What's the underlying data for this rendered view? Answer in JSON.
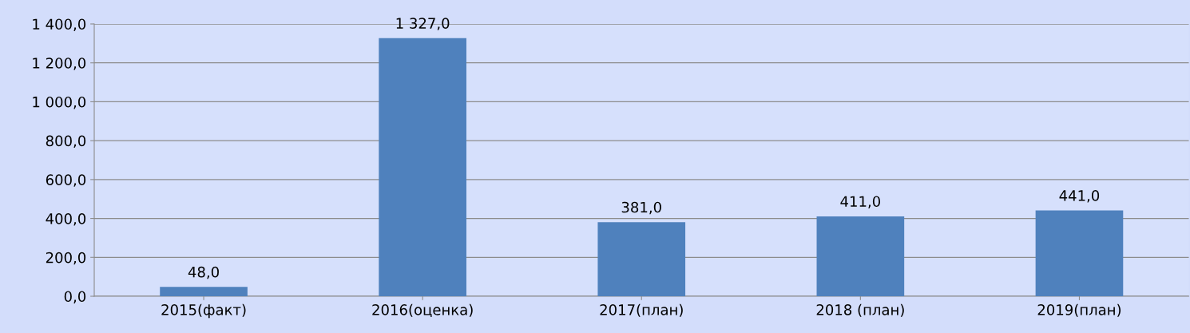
{
  "chart_data": {
    "type": "bar",
    "categories": [
      "2015(факт)",
      "2016(оценка)",
      "2017(план)",
      "2018 (план)",
      "2019(план)"
    ],
    "values": [
      48,
      1327,
      381,
      411,
      441
    ],
    "value_labels": [
      "48,0",
      "1 327,0",
      "381,0",
      "411,0",
      "441,0"
    ],
    "color": "#4f81bd",
    "ylim": [
      0,
      1400
    ],
    "yticks": [
      {
        "value": 0,
        "label": "0,0"
      },
      {
        "value": 200,
        "label": "200,0"
      },
      {
        "value": 400,
        "label": "400,0"
      },
      {
        "value": 600,
        "label": "600,0"
      },
      {
        "value": 800,
        "label": "800,0"
      },
      {
        "value": 1000,
        "label": "1 000,0"
      },
      {
        "value": 1200,
        "label": "1 200,0"
      },
      {
        "value": 1400,
        "label": "1 400,0"
      }
    ],
    "grid": "y"
  }
}
